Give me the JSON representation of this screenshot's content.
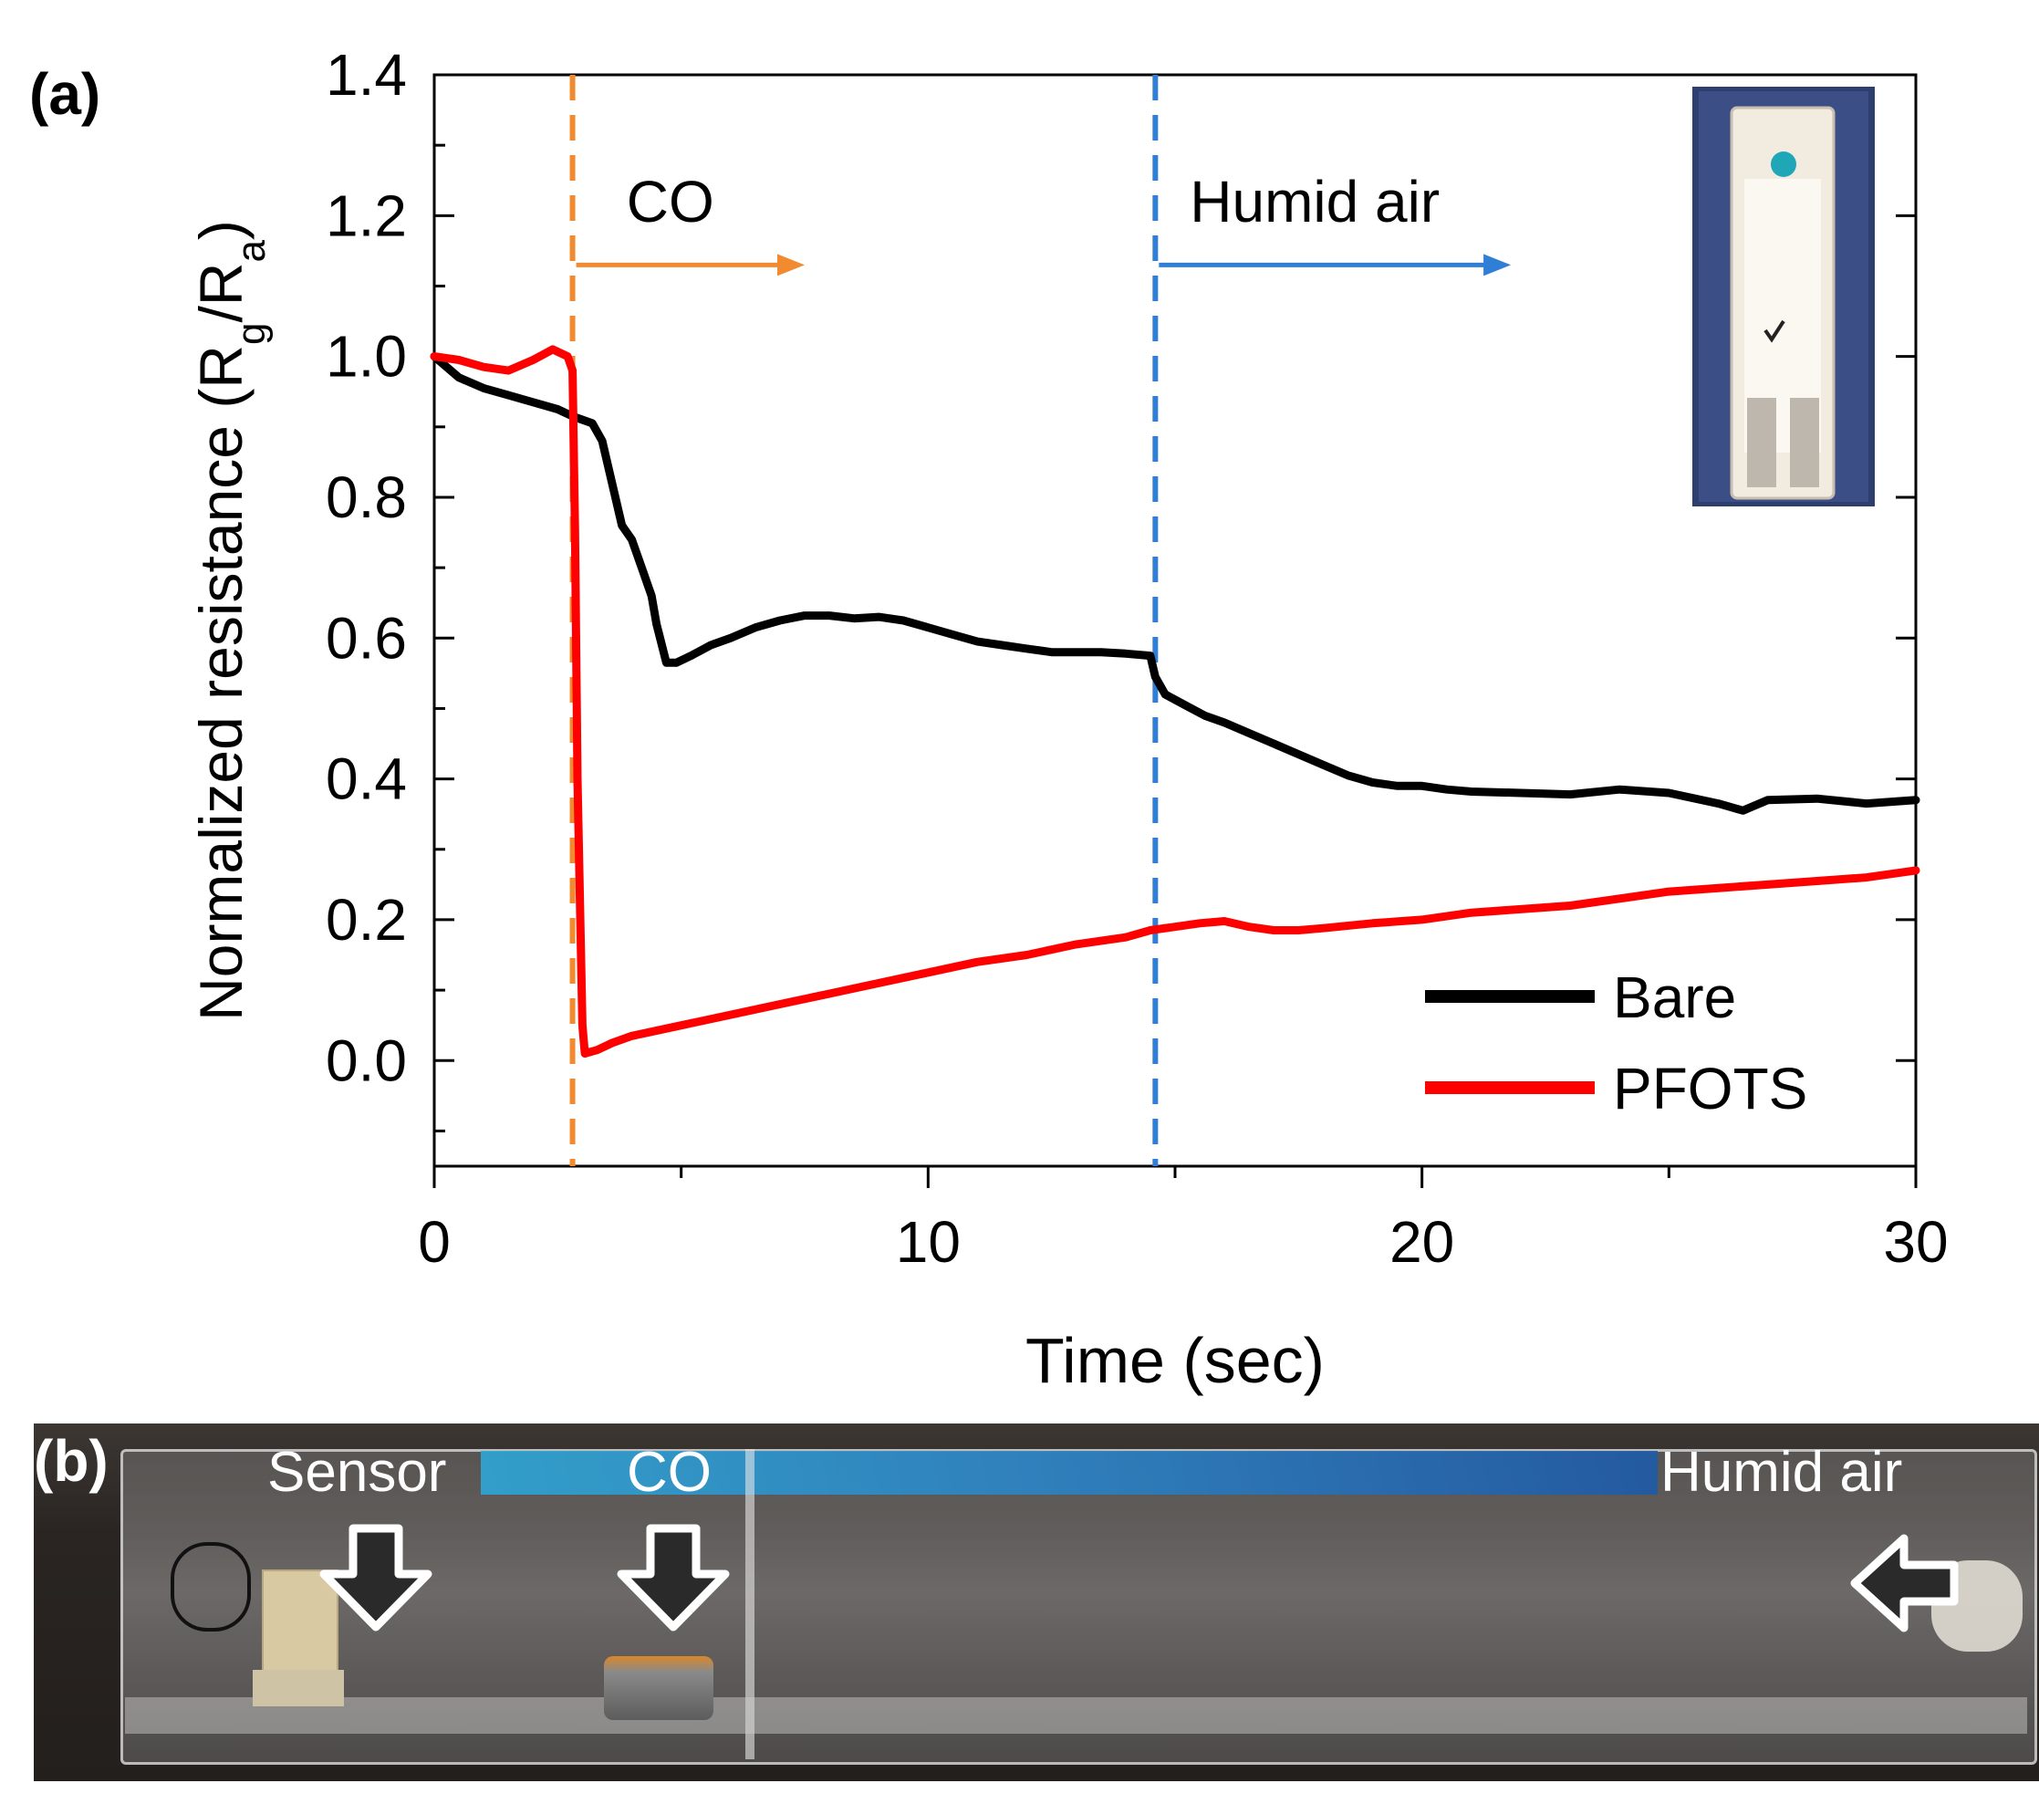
{
  "panel_a_label": "(a)",
  "panel_b_label": "(b)",
  "chart_data": {
    "type": "line",
    "xlabel": "Time (sec)",
    "ylabel": "Normalized resistance (R_g/R_a)",
    "ylabel_parts": {
      "main": "Normalized resistance (R",
      "sub1": "g",
      "mid": "/R",
      "sub2": "a",
      "end": ")"
    },
    "xlim": [
      0,
      30
    ],
    "ylim": [
      -0.15,
      1.4
    ],
    "x_ticks": [
      0,
      10,
      20,
      30
    ],
    "x_tick_labels": [
      "0",
      "10",
      "20",
      "30"
    ],
    "y_ticks": [
      0.0,
      0.2,
      0.4,
      0.6,
      0.8,
      1.0,
      1.2,
      1.4
    ],
    "y_tick_labels": [
      "0.0",
      "0.2",
      "0.4",
      "0.6",
      "0.8",
      "1.0",
      "1.2",
      "1.4"
    ],
    "grid": false,
    "legend_position": "bottom-right",
    "series": [
      {
        "name": "Bare",
        "color": "#000000",
        "points": [
          [
            0,
            1.0
          ],
          [
            0.5,
            0.97
          ],
          [
            1,
            0.955
          ],
          [
            1.5,
            0.945
          ],
          [
            2,
            0.935
          ],
          [
            2.5,
            0.925
          ],
          [
            2.8,
            0.915
          ],
          [
            3.2,
            0.905
          ],
          [
            3.4,
            0.88
          ],
          [
            3.6,
            0.82
          ],
          [
            3.8,
            0.76
          ],
          [
            4.0,
            0.74
          ],
          [
            4.2,
            0.7
          ],
          [
            4.4,
            0.66
          ],
          [
            4.5,
            0.62
          ],
          [
            4.7,
            0.565
          ],
          [
            4.9,
            0.565
          ],
          [
            5.2,
            0.575
          ],
          [
            5.6,
            0.59
          ],
          [
            6.0,
            0.6
          ],
          [
            6.5,
            0.615
          ],
          [
            7.0,
            0.625
          ],
          [
            7.5,
            0.632
          ],
          [
            8.0,
            0.632
          ],
          [
            8.5,
            0.628
          ],
          [
            9.0,
            0.63
          ],
          [
            9.5,
            0.625
          ],
          [
            10.0,
            0.615
          ],
          [
            10.5,
            0.605
          ],
          [
            11.0,
            0.595
          ],
          [
            11.5,
            0.59
          ],
          [
            12.0,
            0.585
          ],
          [
            12.5,
            0.58
          ],
          [
            13.0,
            0.58
          ],
          [
            13.5,
            0.58
          ],
          [
            14.0,
            0.578
          ],
          [
            14.5,
            0.575
          ],
          [
            14.6,
            0.545
          ],
          [
            14.8,
            0.52
          ],
          [
            15.2,
            0.505
          ],
          [
            15.6,
            0.49
          ],
          [
            16.0,
            0.48
          ],
          [
            16.5,
            0.465
          ],
          [
            17.0,
            0.45
          ],
          [
            17.5,
            0.435
          ],
          [
            18.0,
            0.42
          ],
          [
            18.5,
            0.405
          ],
          [
            19.0,
            0.395
          ],
          [
            19.5,
            0.39
          ],
          [
            20.0,
            0.39
          ],
          [
            20.5,
            0.385
          ],
          [
            21.0,
            0.382
          ],
          [
            22.0,
            0.38
          ],
          [
            23.0,
            0.378
          ],
          [
            24.0,
            0.385
          ],
          [
            25.0,
            0.38
          ],
          [
            26.0,
            0.365
          ],
          [
            26.5,
            0.355
          ],
          [
            27.0,
            0.37
          ],
          [
            28.0,
            0.372
          ],
          [
            29.0,
            0.365
          ],
          [
            30.0,
            0.37
          ]
        ]
      },
      {
        "name": "PFOTS",
        "color": "#ff0000",
        "points": [
          [
            0,
            1.0
          ],
          [
            0.5,
            0.995
          ],
          [
            1.0,
            0.985
          ],
          [
            1.5,
            0.98
          ],
          [
            2.0,
            0.995
          ],
          [
            2.4,
            1.01
          ],
          [
            2.7,
            1.0
          ],
          [
            2.8,
            0.98
          ],
          [
            2.85,
            0.75
          ],
          [
            2.9,
            0.4
          ],
          [
            3.0,
            0.05
          ],
          [
            3.05,
            0.01
          ],
          [
            3.3,
            0.015
          ],
          [
            3.6,
            0.025
          ],
          [
            4.0,
            0.035
          ],
          [
            5.0,
            0.05
          ],
          [
            6.0,
            0.065
          ],
          [
            7.0,
            0.08
          ],
          [
            8.0,
            0.095
          ],
          [
            9.0,
            0.11
          ],
          [
            10.0,
            0.125
          ],
          [
            11.0,
            0.14
          ],
          [
            12.0,
            0.15
          ],
          [
            13.0,
            0.165
          ],
          [
            14.0,
            0.175
          ],
          [
            14.5,
            0.185
          ],
          [
            15.0,
            0.19
          ],
          [
            15.5,
            0.195
          ],
          [
            16.0,
            0.198
          ],
          [
            16.5,
            0.19
          ],
          [
            17.0,
            0.185
          ],
          [
            17.5,
            0.185
          ],
          [
            18.0,
            0.188
          ],
          [
            19.0,
            0.195
          ],
          [
            20.0,
            0.2
          ],
          [
            21.0,
            0.21
          ],
          [
            22.0,
            0.215
          ],
          [
            23.0,
            0.22
          ],
          [
            24.0,
            0.23
          ],
          [
            25.0,
            0.24
          ],
          [
            26.0,
            0.245
          ],
          [
            27.0,
            0.25
          ],
          [
            28.0,
            0.255
          ],
          [
            29.0,
            0.26
          ],
          [
            30.0,
            0.27
          ]
        ]
      }
    ],
    "vertical_markers": [
      {
        "x": 2.8,
        "color": "#f28a30",
        "style": "dashed",
        "label": "CO",
        "arrow_to_x": 7.5,
        "label_y": 1.22,
        "arrow_y": 1.13
      },
      {
        "x": 14.6,
        "color": "#2f7fd6",
        "style": "dashed",
        "label": "Humid air",
        "arrow_to_x": 21.8,
        "label_y": 1.22,
        "arrow_y": 1.13
      }
    ],
    "legend": [
      {
        "name": "Bare",
        "color": "#000000"
      },
      {
        "name": "PFOTS",
        "color": "#ff0000"
      }
    ],
    "inset": "photo of sensor chip"
  },
  "photo_labels": {
    "sensor": "Sensor",
    "co": "CO",
    "humid_air": "Humid air"
  }
}
